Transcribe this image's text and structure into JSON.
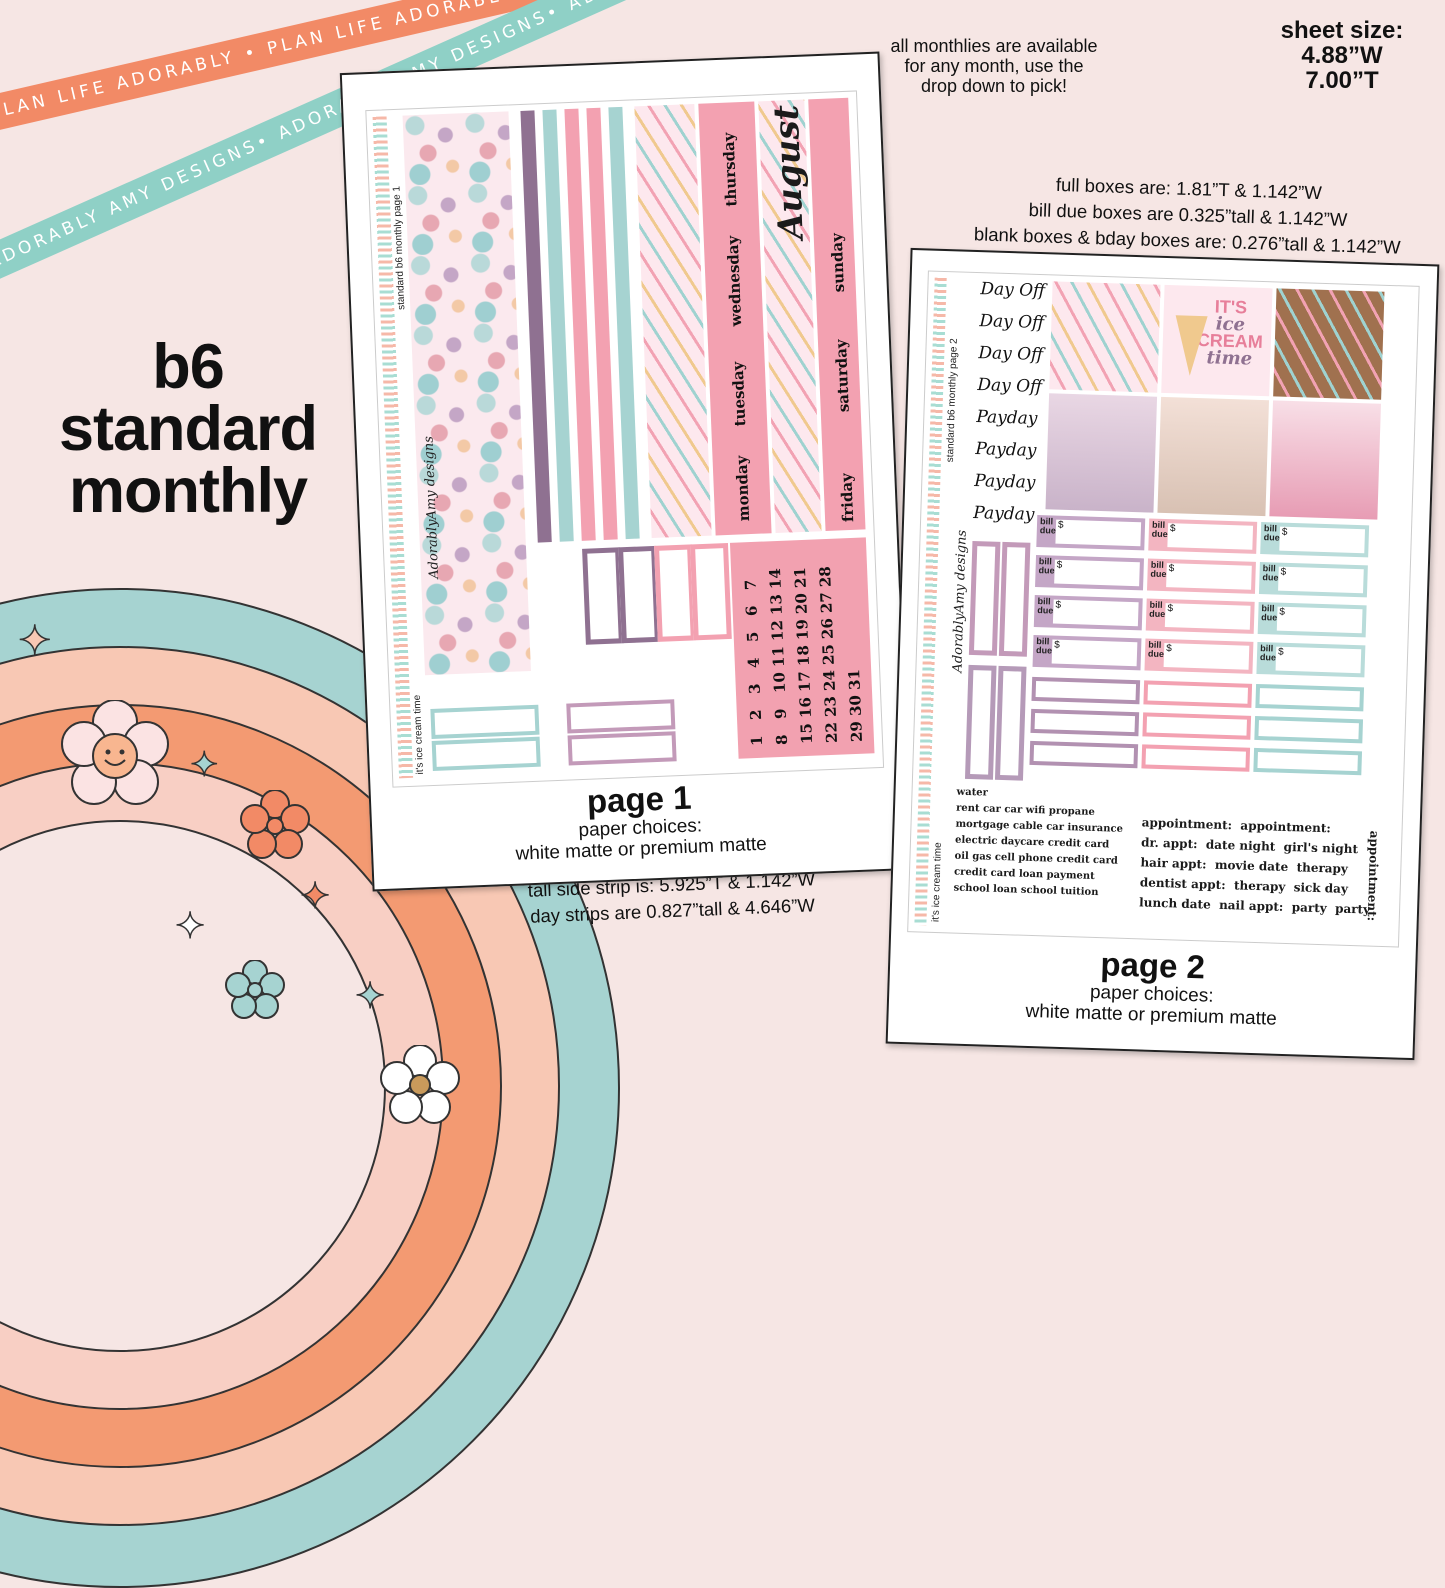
{
  "ribbons": {
    "orange": "PLAN LIFE ADORABLY • PLAN LIFE ADORABLY • PLAN LIFE ADORABLY • PLAN LIFE ADORABLY",
    "teal": "ADORABLY AMY DESIGNS• ADORABLY AMY DESIGNS• ADORABLY AMY DESIGNS• ADORABLY AMY DESIGNS"
  },
  "title": {
    "line1": "b6",
    "line2": "standard",
    "line3": "monthly"
  },
  "notes": {
    "monthlies": [
      "all monthlies are available",
      "for any month, use the",
      "drop down to pick!"
    ],
    "sheet_size": [
      "sheet size:",
      "4.88”W",
      "7.00”T"
    ],
    "box_dims": [
      "full boxes are: 1.81”T & 1.142”W",
      "bill due boxes are 0.325”tall & 1.142”W",
      "blank boxes & bday boxes are: 0.276”tall & 1.142”W"
    ],
    "strip_dims": [
      "tall side strip is: 5.925”T & 1.142”W",
      "day strips are 0.827”tall & 4.646”W"
    ]
  },
  "page1": {
    "side_label_top": "standard b6 monthly page 1",
    "side_label_bottom": "it's ice cream time",
    "logo": "AdorablyAmy designs",
    "month": "August",
    "days": [
      "monday",
      "tuesday",
      "wednesday",
      "thursday",
      "friday",
      "saturday",
      "sunday"
    ],
    "date_rows": [
      [
        "1",
        "2",
        "3",
        "4",
        "5",
        "6",
        "7"
      ],
      [
        "8",
        "9",
        "10",
        "11",
        "12",
        "13",
        "14"
      ],
      [
        "15",
        "16",
        "17",
        "18",
        "19",
        "20",
        "21"
      ],
      [
        "22",
        "23",
        "24",
        "25",
        "26",
        "27",
        "28"
      ],
      [
        "29",
        "30",
        "31"
      ]
    ],
    "caption": {
      "page": "page 1",
      "paper1": "paper choices:",
      "paper2": "white matte or premium matte"
    }
  },
  "page2": {
    "side_label_top": "standard b6 monthly page 2",
    "side_label_bottom": "it's ice cream time",
    "logo": "AdorablyAmy designs",
    "script_labels": [
      "Day Off",
      "Day Off",
      "Day Off",
      "Day Off",
      "Payday",
      "Payday",
      "Payday",
      "Payday"
    ],
    "art_title": [
      "IT'S",
      "ice",
      "CREAM",
      "time"
    ],
    "bill_label": "bill due",
    "bill_dollar": "$",
    "word_lines": [
      "water",
      "rent   car   car   wifi   propane",
      "mortgage   cable   car insurance",
      "electric   daycare   credit card",
      "oil   gas   cell phone   credit card",
      "credit card   loan payment",
      "school loan   school tuition"
    ],
    "appt_words": [
      "appointment:",
      "appointment:",
      "dr. appt:",
      "date night",
      "girl's night",
      "hair appt:",
      "movie date",
      "therapy",
      "dentist appt:",
      "therapy",
      "sick day",
      "lunch date",
      "nail appt:",
      "party",
      "party",
      "appointment:"
    ],
    "caption": {
      "page": "page 2",
      "paper1": "paper choices:",
      "paper2": "white matte or premium matte"
    }
  },
  "colors": {
    "pink": "#f3a1b1",
    "teal": "#a6d3d1",
    "mauve": "#8f7191",
    "orange": "#f28a66",
    "background": "#f6e6e4"
  }
}
